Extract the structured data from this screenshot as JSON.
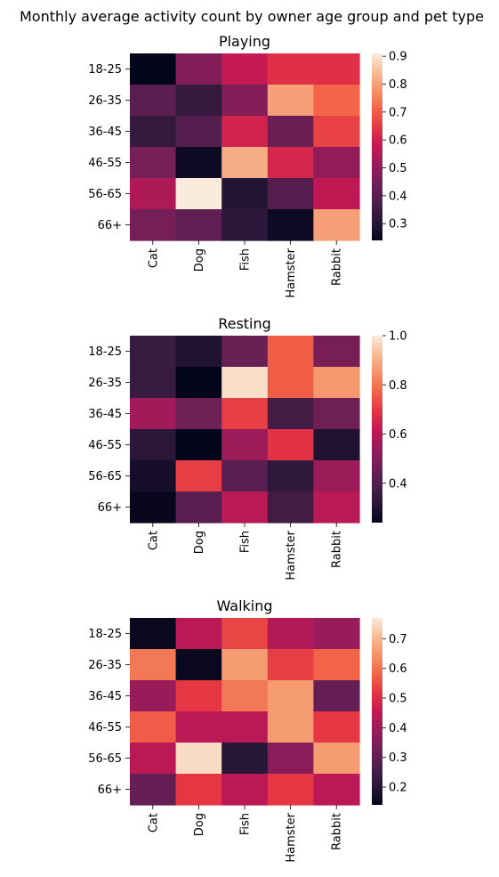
{
  "chart_data": {
    "type": "heatmap",
    "title": "Monthly average activity count by owner age group and pet type",
    "rows": [
      "18-25",
      "26-35",
      "36-45",
      "46-55",
      "56-65",
      "66+"
    ],
    "columns": [
      "Cat",
      "Dog",
      "Fish",
      "Hamster",
      "Rabbit"
    ],
    "colormap": "rocket",
    "panels": [
      {
        "title": "Playing",
        "vmin": 0.24,
        "vmax": 0.91,
        "colorbar_ticks": [
          "0.3",
          "0.4",
          "0.5",
          "0.6",
          "0.7",
          "0.8",
          "0.9"
        ],
        "values": [
          [
            0.24,
            0.47,
            0.58,
            0.63,
            0.63
          ],
          [
            0.4,
            0.33,
            0.47,
            0.8,
            0.71
          ],
          [
            0.33,
            0.39,
            0.6,
            0.43,
            0.66
          ],
          [
            0.45,
            0.26,
            0.82,
            0.61,
            0.5
          ],
          [
            0.54,
            0.91,
            0.3,
            0.39,
            0.57
          ],
          [
            0.45,
            0.41,
            0.31,
            0.26,
            0.8
          ]
        ]
      },
      {
        "title": "Resting",
        "vmin": 0.24,
        "vmax": 1.0,
        "colorbar_ticks": [
          "0.4",
          "0.6",
          "0.8",
          "1.0"
        ],
        "values": [
          [
            0.35,
            0.3,
            0.45,
            0.76,
            0.48
          ],
          [
            0.35,
            0.24,
            0.98,
            0.76,
            0.86
          ],
          [
            0.56,
            0.46,
            0.71,
            0.37,
            0.46
          ],
          [
            0.32,
            0.24,
            0.55,
            0.69,
            0.3
          ],
          [
            0.28,
            0.71,
            0.42,
            0.33,
            0.55
          ],
          [
            0.25,
            0.42,
            0.6,
            0.37,
            0.6
          ]
        ]
      },
      {
        "title": "Walking",
        "vmin": 0.14,
        "vmax": 0.77,
        "colorbar_ticks": [
          "0.2",
          "0.3",
          "0.4",
          "0.5",
          "0.6",
          "0.7"
        ],
        "values": [
          [
            0.15,
            0.44,
            0.54,
            0.43,
            0.39
          ],
          [
            0.61,
            0.15,
            0.66,
            0.53,
            0.58
          ],
          [
            0.39,
            0.52,
            0.61,
            0.66,
            0.31
          ],
          [
            0.57,
            0.44,
            0.44,
            0.66,
            0.52
          ],
          [
            0.44,
            0.75,
            0.2,
            0.37,
            0.66
          ],
          [
            0.31,
            0.52,
            0.44,
            0.52,
            0.44
          ]
        ]
      }
    ]
  }
}
